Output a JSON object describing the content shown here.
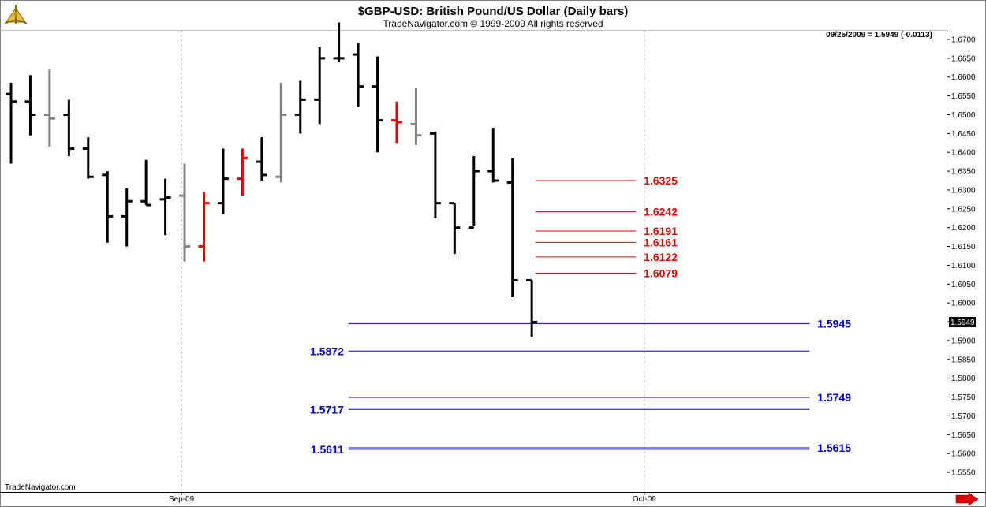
{
  "header": {
    "title": "$GBP-USD:  British Pound/US Dollar  (Daily bars)",
    "subtitle": "TradeNavigator.com © 1999-2009 All rights reserved",
    "readout": "09/25/2009 = 1.5949 (-0.0113)",
    "watermark": "TradeNavigator.com",
    "last_price_label": "1.5949"
  },
  "colors": {
    "up_bar": "#000000",
    "down_bar": "#000000",
    "neutral_bar": "#808080",
    "highlight_bar": "#e00000",
    "resistance": "#e00000",
    "support": "#0000cc",
    "grid": "#b0b0b0"
  },
  "icons": {
    "logo": "sextant-logo-icon",
    "scroll": "arrow-right-icon"
  },
  "chart_data": {
    "type": "ohlc",
    "title": "$GBP-USD:  British Pound/US Dollar  (Daily bars)",
    "ylim": [
      1.5545,
      1.6715
    ],
    "y_ticks": [
      "1.6700",
      "1.6650",
      "1.6600",
      "1.6550",
      "1.6500",
      "1.6450",
      "1.6400",
      "1.6350",
      "1.6300",
      "1.6250",
      "1.6200",
      "1.6150",
      "1.6100",
      "1.6050",
      "1.6000",
      "1.5950",
      "1.5900",
      "1.5850",
      "1.5800",
      "1.5750",
      "1.5700",
      "1.5650",
      "1.5600",
      "1.5550"
    ],
    "x_ticks": [
      {
        "label": "Sep-09",
        "index": 9
      },
      {
        "label": "Oct-09",
        "index": 33
      }
    ],
    "bars": [
      {
        "o": 1.6555,
        "h": 1.6585,
        "l": 1.637,
        "c": 1.6535,
        "color": "black"
      },
      {
        "o": 1.6535,
        "h": 1.6605,
        "l": 1.6445,
        "c": 1.65,
        "color": "black"
      },
      {
        "o": 1.65,
        "h": 1.662,
        "l": 1.6415,
        "c": 1.649,
        "color": "gray"
      },
      {
        "o": 1.65,
        "h": 1.654,
        "l": 1.639,
        "c": 1.641,
        "color": "black"
      },
      {
        "o": 1.641,
        "h": 1.644,
        "l": 1.633,
        "c": 1.6335,
        "color": "black"
      },
      {
        "o": 1.634,
        "h": 1.635,
        "l": 1.616,
        "c": 1.623,
        "color": "black"
      },
      {
        "o": 1.623,
        "h": 1.6305,
        "l": 1.615,
        "c": 1.627,
        "color": "black"
      },
      {
        "o": 1.627,
        "h": 1.638,
        "l": 1.626,
        "c": 1.626,
        "color": "black"
      },
      {
        "o": 1.6275,
        "h": 1.633,
        "l": 1.618,
        "c": 1.628,
        "color": "black"
      },
      {
        "o": 1.6285,
        "h": 1.637,
        "l": 1.611,
        "c": 1.615,
        "color": "gray"
      },
      {
        "o": 1.615,
        "h": 1.6295,
        "l": 1.611,
        "c": 1.6265,
        "color": "red"
      },
      {
        "o": 1.6265,
        "h": 1.641,
        "l": 1.6235,
        "c": 1.633,
        "color": "black"
      },
      {
        "o": 1.633,
        "h": 1.641,
        "l": 1.6285,
        "c": 1.6385,
        "color": "red"
      },
      {
        "o": 1.6375,
        "h": 1.644,
        "l": 1.6325,
        "c": 1.634,
        "color": "black"
      },
      {
        "o": 1.6335,
        "h": 1.6585,
        "l": 1.632,
        "c": 1.65,
        "color": "gray"
      },
      {
        "o": 1.65,
        "h": 1.659,
        "l": 1.645,
        "c": 1.654,
        "color": "black"
      },
      {
        "o": 1.654,
        "h": 1.668,
        "l": 1.6475,
        "c": 1.665,
        "color": "black"
      },
      {
        "o": 1.665,
        "h": 1.6745,
        "l": 1.664,
        "c": 1.665,
        "color": "black"
      },
      {
        "o": 1.666,
        "h": 1.669,
        "l": 1.652,
        "c": 1.6575,
        "color": "black"
      },
      {
        "o": 1.6575,
        "h": 1.6655,
        "l": 1.64,
        "c": 1.6485,
        "color": "black"
      },
      {
        "o": 1.6485,
        "h": 1.6535,
        "l": 1.6425,
        "c": 1.648,
        "color": "red"
      },
      {
        "o": 1.6475,
        "h": 1.657,
        "l": 1.642,
        "c": 1.6445,
        "color": "gray"
      },
      {
        "o": 1.645,
        "h": 1.6455,
        "l": 1.6225,
        "c": 1.6265,
        "color": "black"
      },
      {
        "o": 1.6265,
        "h": 1.6265,
        "l": 1.613,
        "c": 1.62,
        "color": "black"
      },
      {
        "o": 1.62,
        "h": 1.639,
        "l": 1.6205,
        "c": 1.635,
        "color": "black"
      },
      {
        "o": 1.635,
        "h": 1.6465,
        "l": 1.632,
        "c": 1.6325,
        "color": "black"
      },
      {
        "o": 1.632,
        "h": 1.6385,
        "l": 1.6015,
        "c": 1.606,
        "color": "black"
      },
      {
        "o": 1.606,
        "h": 1.606,
        "l": 1.591,
        "c": 1.5949,
        "color": "black"
      }
    ],
    "levels": [
      {
        "value": 1.6325,
        "label": "1.6325",
        "type": "resistance",
        "x_from": 27.2,
        "x_to": 32.4,
        "label_side": "right"
      },
      {
        "value": 1.6242,
        "label": "1.6242",
        "type": "resistance",
        "x_from": 27.2,
        "x_to": 32.4,
        "label_side": "right"
      },
      {
        "value": 1.6191,
        "label": "1.6191",
        "type": "resistance",
        "x_from": 27.2,
        "x_to": 32.4,
        "label_side": "right"
      },
      {
        "value": 1.6161,
        "label": "1.6161",
        "type": "resistance",
        "x_from": 27.2,
        "x_to": 32.4,
        "label_side": "right"
      },
      {
        "value": 1.6122,
        "label": "1.6122",
        "type": "resistance",
        "x_from": 27.2,
        "x_to": 32.4,
        "label_side": "right"
      },
      {
        "value": 1.6079,
        "label": "1.6079",
        "type": "resistance",
        "x_from": 27.2,
        "x_to": 32.4,
        "label_side": "right"
      },
      {
        "value": 1.5945,
        "label": "1.5945",
        "type": "support",
        "x_from": 17.5,
        "x_to": 41.4,
        "label_side": "right"
      },
      {
        "value": 1.5872,
        "label": "1.5872",
        "type": "support",
        "x_from": 17.5,
        "x_to": 41.4,
        "label_side": "left"
      },
      {
        "value": 1.5749,
        "label": "1.5749",
        "type": "support",
        "x_from": 17.5,
        "x_to": 41.4,
        "label_side": "right"
      },
      {
        "value": 1.5717,
        "label": "1.5717",
        "type": "support",
        "x_from": 17.5,
        "x_to": 41.4,
        "label_side": "left"
      },
      {
        "value": 1.5615,
        "label": "1.5615",
        "type": "support",
        "x_from": 17.5,
        "x_to": 41.4,
        "label_side": "right"
      },
      {
        "value": 1.5611,
        "label": "1.5611",
        "type": "support",
        "x_from": 17.5,
        "x_to": 41.4,
        "label_side": "left"
      }
    ]
  }
}
